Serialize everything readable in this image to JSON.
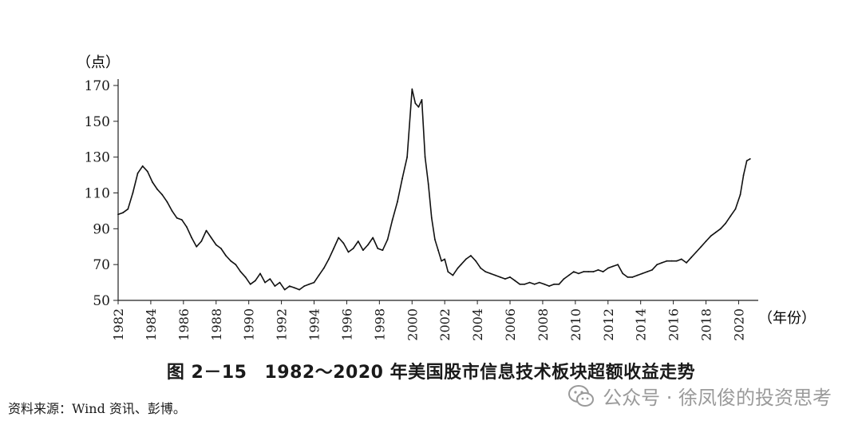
{
  "chart_data": {
    "type": "line",
    "y_unit_label": "（点）",
    "x_unit_label": "（年份）",
    "ylim": [
      50,
      170
    ],
    "y_ticks": [
      "170",
      "150",
      "130",
      "110",
      "90",
      "70",
      "50"
    ],
    "xlim": [
      1982,
      2021.2
    ],
    "x_ticks": [
      "1982",
      "1984",
      "1986",
      "1988",
      "1990",
      "1992",
      "1994",
      "1996",
      "1998",
      "2000",
      "2002",
      "2004",
      "2006",
      "2008",
      "2010",
      "2012",
      "2014",
      "2016",
      "2018",
      "2020"
    ],
    "series": [
      {
        "x": [
          1982.0,
          1982.3,
          1982.6,
          1982.9,
          1983.2,
          1983.5,
          1983.8,
          1984.1,
          1984.4,
          1984.7,
          1985.0,
          1985.3,
          1985.6,
          1985.9,
          1986.2,
          1986.5,
          1986.8,
          1987.1,
          1987.4,
          1987.7,
          1988.0,
          1988.3,
          1988.6,
          1988.9,
          1989.2,
          1989.5,
          1989.8,
          1990.1,
          1990.4,
          1990.7,
          1991.0,
          1991.3,
          1991.6,
          1991.9,
          1992.2,
          1992.5,
          1992.8,
          1993.1,
          1993.4,
          1993.7,
          1994.0,
          1994.3,
          1994.6,
          1994.9,
          1995.2,
          1995.5,
          1995.8,
          1996.1,
          1996.4,
          1996.7,
          1997.0,
          1997.3,
          1997.6,
          1997.9,
          1998.2,
          1998.5,
          1998.8,
          1999.1,
          1999.4,
          1999.7,
          2000.0,
          2000.2,
          2000.4,
          2000.6,
          2000.8,
          2001.0,
          2001.2,
          2001.4,
          2001.6,
          2001.8,
          2002.0,
          2002.2,
          2002.5,
          2002.8,
          2003.0,
          2003.3,
          2003.6,
          2003.9,
          2004.2,
          2004.5,
          2004.8,
          2005.1,
          2005.4,
          2005.7,
          2006.0,
          2006.3,
          2006.6,
          2006.9,
          2007.2,
          2007.5,
          2007.8,
          2008.1,
          2008.4,
          2008.7,
          2009.0,
          2009.3,
          2009.6,
          2009.9,
          2010.2,
          2010.5,
          2010.8,
          2011.1,
          2011.4,
          2011.7,
          2012.0,
          2012.3,
          2012.6,
          2012.9,
          2013.2,
          2013.5,
          2013.8,
          2014.1,
          2014.4,
          2014.7,
          2015.0,
          2015.3,
          2015.6,
          2015.9,
          2016.2,
          2016.5,
          2016.8,
          2017.1,
          2017.4,
          2017.7,
          2018.0,
          2018.3,
          2018.6,
          2018.9,
          2019.2,
          2019.5,
          2019.8,
          2020.1,
          2020.3,
          2020.5,
          2020.7
        ],
        "values": [
          98,
          99,
          101,
          110,
          121,
          125,
          122,
          116,
          112,
          109,
          105,
          100,
          96,
          95,
          91,
          85,
          80,
          83,
          89,
          85,
          81,
          79,
          75,
          72,
          70,
          66,
          63,
          59,
          61,
          65,
          60,
          62,
          58,
          60,
          56,
          58,
          57,
          56,
          58,
          59,
          60,
          64,
          68,
          73,
          79,
          85,
          82,
          77,
          79,
          83,
          78,
          81,
          85,
          79,
          78,
          84,
          95,
          105,
          118,
          130,
          168,
          160,
          158,
          162,
          130,
          115,
          96,
          84,
          78,
          72,
          73,
          66,
          64,
          68,
          70,
          73,
          75,
          72,
          68,
          66,
          65,
          64,
          63,
          62,
          63,
          61,
          59,
          59,
          60,
          59,
          60,
          59,
          58,
          59,
          59,
          62,
          64,
          66,
          65,
          66,
          66,
          66,
          67,
          66,
          68,
          69,
          70,
          65,
          63,
          63,
          64,
          65,
          66,
          67,
          70,
          71,
          72,
          72,
          72,
          73,
          71,
          74,
          77,
          80,
          83,
          86,
          88,
          90,
          93,
          97,
          101,
          109,
          120,
          128,
          129
        ]
      }
    ]
  },
  "caption": {
    "figure_number": "图 2－15",
    "title": "1982～2020 年美国股市信息技术板块超额收益走势"
  },
  "source_note": "资料来源：Wind 资讯、彭博。",
  "watermark": {
    "text": "公众号 · 徐凤俊的投资思考",
    "icon": "wechat-icon",
    "color": "#9a9a9a"
  }
}
